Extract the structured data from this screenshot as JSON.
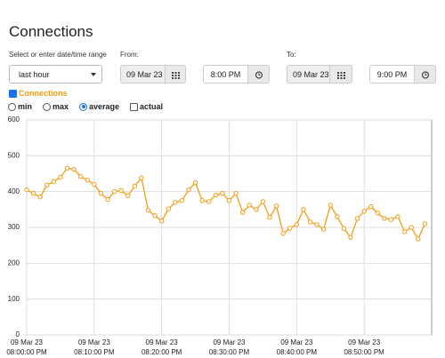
{
  "header": {
    "title": "Connections"
  },
  "form": {
    "range_label": "Select or enter date/time range",
    "range_value": "last hour",
    "from_label": "From:",
    "from_date": "09 Mar 23",
    "from_time": "8:00 PM",
    "to_label": "To:",
    "to_date": "09 Mar 23",
    "to_time": "9:00 PM"
  },
  "options": {
    "series_toggle": "Connections",
    "min": "min",
    "max": "max",
    "average": "average",
    "actual": "actual",
    "selected": "average"
  },
  "chart_data": {
    "type": "line",
    "series": [
      {
        "name": "Connections",
        "color": "#f39c12",
        "values": [
          405,
          395,
          385,
          418,
          428,
          440,
          465,
          462,
          442,
          432,
          420,
          395,
          378,
          400,
          403,
          388,
          415,
          438,
          348,
          333,
          318,
          352,
          370,
          375,
          405,
          425,
          375,
          372,
          390,
          395,
          375,
          395,
          342,
          362,
          350,
          372,
          328,
          360,
          283,
          298,
          308,
          350,
          315,
          308,
          295,
          362,
          330,
          297,
          272,
          325,
          345,
          358,
          340,
          325,
          322,
          330,
          288,
          300,
          268,
          310
        ]
      }
    ],
    "x": [
      "2023-03-09T20:00",
      "2023-03-09T20:01",
      "2023-03-09T20:02",
      "2023-03-09T20:03",
      "2023-03-09T20:04",
      "2023-03-09T20:05",
      "2023-03-09T20:06",
      "2023-03-09T20:07",
      "2023-03-09T20:08",
      "2023-03-09T20:09",
      "2023-03-09T20:10",
      "2023-03-09T20:11",
      "2023-03-09T20:12",
      "2023-03-09T20:13",
      "2023-03-09T20:14",
      "2023-03-09T20:15",
      "2023-03-09T20:16",
      "2023-03-09T20:17",
      "2023-03-09T20:18",
      "2023-03-09T20:19",
      "2023-03-09T20:20",
      "2023-03-09T20:21",
      "2023-03-09T20:22",
      "2023-03-09T20:23",
      "2023-03-09T20:24",
      "2023-03-09T20:25",
      "2023-03-09T20:26",
      "2023-03-09T20:27",
      "2023-03-09T20:28",
      "2023-03-09T20:29",
      "2023-03-09T20:30",
      "2023-03-09T20:31",
      "2023-03-09T20:32",
      "2023-03-09T20:33",
      "2023-03-09T20:34",
      "2023-03-09T20:35",
      "2023-03-09T20:36",
      "2023-03-09T20:37",
      "2023-03-09T20:38",
      "2023-03-09T20:39",
      "2023-03-09T20:40",
      "2023-03-09T20:41",
      "2023-03-09T20:42",
      "2023-03-09T20:43",
      "2023-03-09T20:44",
      "2023-03-09T20:45",
      "2023-03-09T20:46",
      "2023-03-09T20:47",
      "2023-03-09T20:48",
      "2023-03-09T20:49",
      "2023-03-09T20:50",
      "2023-03-09T20:51",
      "2023-03-09T20:52",
      "2023-03-09T20:53",
      "2023-03-09T20:54",
      "2023-03-09T20:55",
      "2023-03-09T20:56",
      "2023-03-09T20:57",
      "2023-03-09T20:58",
      "2023-03-09T20:59"
    ],
    "xlim": [
      "2023-03-09T20:00",
      "2023-03-09T21:00"
    ],
    "xticks": [
      {
        "value": "2023-03-09T20:00",
        "label": "09 Mar 23\n08:00:00 PM"
      },
      {
        "value": "2023-03-09T20:10",
        "label": "09 Mar 23\n08:10:00 PM"
      },
      {
        "value": "2023-03-09T20:20",
        "label": "09 Mar 23\n08:20:00 PM"
      },
      {
        "value": "2023-03-09T20:30",
        "label": "09 Mar 23\n08:30:00 PM"
      },
      {
        "value": "2023-03-09T20:40",
        "label": "09 Mar 23\n08:40:00 PM"
      },
      {
        "value": "2023-03-09T20:50",
        "label": "09 Mar 23\n08:50:00 PM"
      }
    ],
    "ylim": [
      0,
      600
    ],
    "yticks": [
      0,
      100,
      200,
      300,
      400,
      500,
      600
    ],
    "grid": true
  }
}
